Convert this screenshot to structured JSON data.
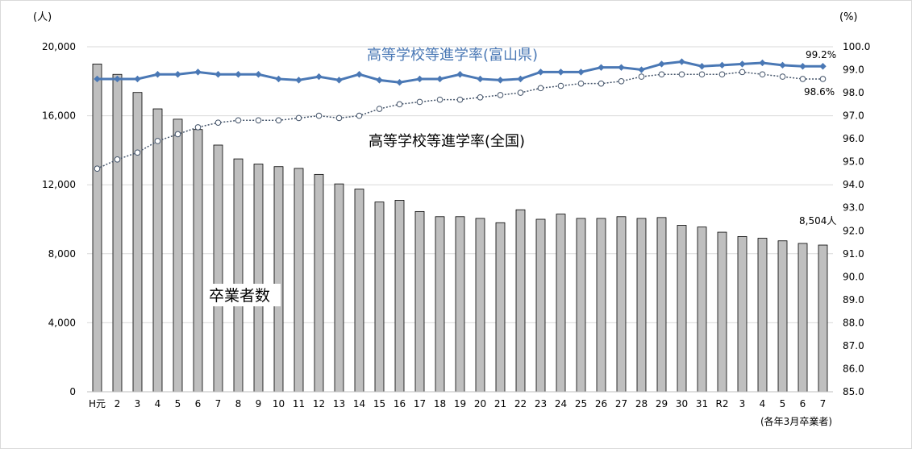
{
  "chart_data": {
    "type": "bar+line",
    "categories": [
      "H元",
      "2",
      "3",
      "4",
      "5",
      "6",
      "7",
      "8",
      "9",
      "10",
      "11",
      "12",
      "13",
      "14",
      "15",
      "16",
      "17",
      "18",
      "19",
      "20",
      "21",
      "22",
      "23",
      "24",
      "25",
      "26",
      "27",
      "28",
      "29",
      "30",
      "31",
      "R2",
      "3",
      "4",
      "5",
      "6",
      "7"
    ],
    "left_axis": {
      "unit": "(人)",
      "ylim": [
        0,
        20000
      ],
      "ticks": [
        "0",
        "4,000",
        "8,000",
        "12,000",
        "16,000",
        "20,000"
      ],
      "tick_values": [
        0,
        4000,
        8000,
        12000,
        16000,
        20000
      ]
    },
    "right_axis": {
      "unit": "(%)",
      "ylim": [
        85,
        100
      ],
      "ticks": [
        "85.0",
        "86.0",
        "87.0",
        "88.0",
        "89.0",
        "90.0",
        "91.0",
        "92.0",
        "93.0",
        "94.0",
        "95.0",
        "96.0",
        "97.0",
        "98.0",
        "99.0",
        "100.0"
      ],
      "tick_values": [
        85,
        86,
        87,
        88,
        89,
        90,
        91,
        92,
        93,
        94,
        95,
        96,
        97,
        98,
        99,
        100
      ]
    },
    "series": [
      {
        "name": "卒業者数",
        "kind": "bar",
        "axis": "left",
        "color": "#bfbfbf",
        "values": [
          19000,
          18400,
          17350,
          16400,
          15800,
          15200,
          14300,
          13500,
          13200,
          13050,
          12950,
          12600,
          12050,
          11750,
          11000,
          11100,
          10450,
          10150,
          10150,
          10050,
          9800,
          10550,
          10000,
          10300,
          10050,
          10050,
          10150,
          10050,
          10100,
          9650,
          9550,
          9250,
          9000,
          8900,
          8750,
          8600,
          8504
        ]
      },
      {
        "name": "高等学校等進学率(富山県)",
        "kind": "line",
        "axis": "right",
        "color": "#4a78b5",
        "values": [
          98.6,
          98.6,
          98.6,
          98.8,
          98.8,
          98.9,
          98.8,
          98.8,
          98.8,
          98.6,
          98.55,
          98.7,
          98.55,
          98.8,
          98.55,
          98.45,
          98.6,
          98.6,
          98.8,
          98.6,
          98.55,
          98.6,
          98.9,
          98.9,
          98.9,
          99.1,
          99.1,
          99.0,
          99.25,
          99.35,
          99.15,
          99.2,
          99.25,
          99.3,
          99.2,
          99.15,
          99.15
        ]
      },
      {
        "name": "高等学校等進学率(全国)",
        "kind": "line",
        "axis": "right",
        "color": "#44546a",
        "values": [
          94.7,
          95.1,
          95.4,
          95.9,
          96.2,
          96.5,
          96.7,
          96.8,
          96.8,
          96.8,
          96.9,
          97.0,
          96.9,
          97.0,
          97.3,
          97.5,
          97.6,
          97.7,
          97.7,
          97.8,
          97.9,
          98.0,
          98.2,
          98.3,
          98.4,
          98.4,
          98.5,
          98.7,
          98.8,
          98.8,
          98.8,
          98.8,
          98.9,
          98.8,
          98.7,
          98.6,
          98.6
        ]
      }
    ],
    "annotations": {
      "bar_last": "8,504人",
      "pref_last": "99.2%",
      "nat_last": "98.6%"
    },
    "note": "(各年3月卒業者)"
  }
}
